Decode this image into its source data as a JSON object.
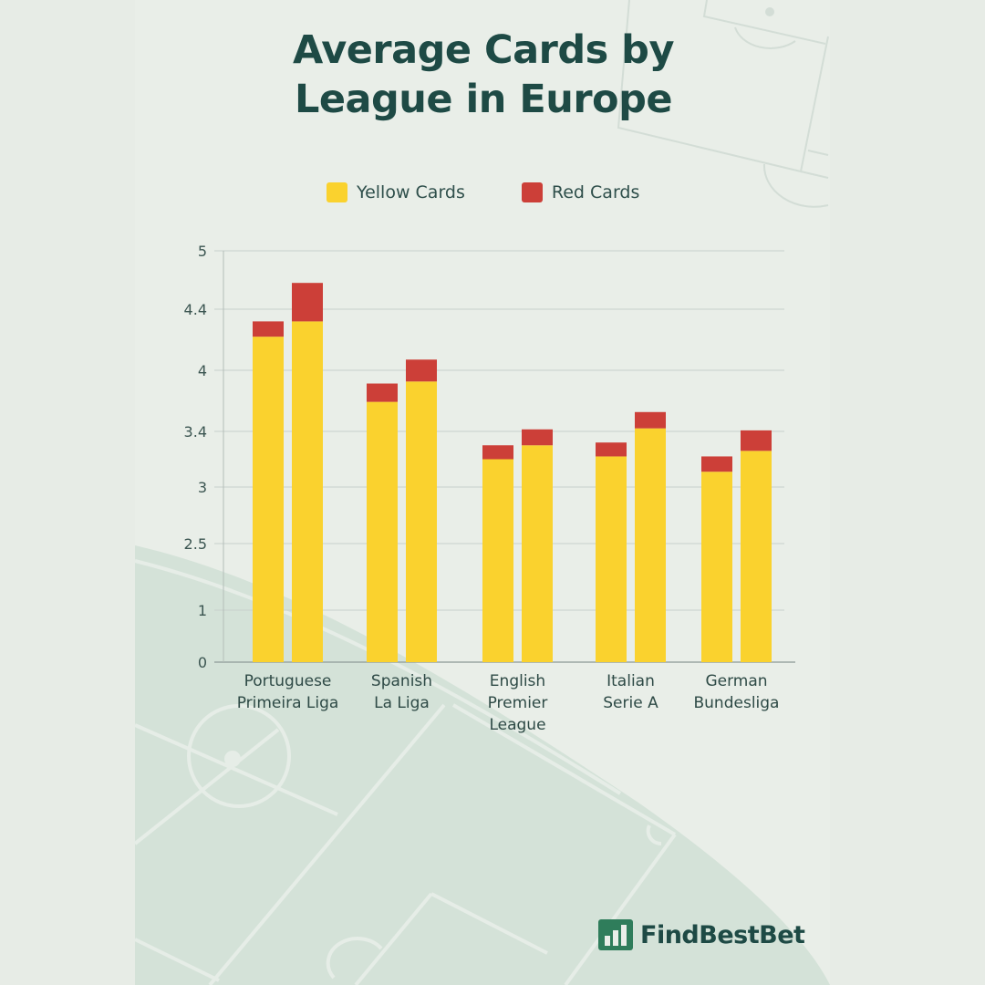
{
  "title_lines": [
    "Average Cards by",
    "League in Europe"
  ],
  "legend": [
    {
      "label": "Yellow Cards",
      "color": "#fad22e"
    },
    {
      "label": "Red Cards",
      "color": "#cc3f38"
    }
  ],
  "brand": {
    "name": "FindBestBet",
    "icon": "bar-chart-logo-icon",
    "color": "#2f7d5b"
  },
  "chart_data": {
    "type": "bar",
    "stacked": true,
    "title": "Average Cards by League in Europe",
    "xlabel": "",
    "ylabel": "",
    "ylim": [
      0,
      5
    ],
    "y_ticks": [
      "0",
      "1",
      "2.5",
      "3",
      "3.4",
      "4",
      "4.4",
      "5"
    ],
    "y_tick_values": [
      0,
      1,
      2.5,
      3,
      3.4,
      4,
      4.4,
      5
    ],
    "axis_note": "Tick labels are unevenly spaced (non-linear axis); values estimated by interpolating between labeled gridlines",
    "grid": true,
    "legend_position": "top-center",
    "categories": [
      [
        "Portuguese",
        "Primeira Liga"
      ],
      [
        "Spanish",
        "La Liga"
      ],
      [
        "English",
        "Premier",
        "League"
      ],
      [
        "Italian",
        "Serie A"
      ],
      [
        "German",
        "Bundesliga"
      ]
    ],
    "bars_per_category": 2,
    "series": [
      {
        "name": "Yellow Cards",
        "color": "#fad22e",
        "values": [
          [
            4.22,
            4.32
          ],
          [
            3.69,
            3.89
          ],
          [
            3.2,
            3.3
          ],
          [
            3.22,
            3.43
          ],
          [
            3.11,
            3.26
          ]
        ]
      },
      {
        "name": "Red Cards",
        "color": "#cc3f38",
        "totals": [
          [
            4.32,
            4.67
          ],
          [
            3.87,
            4.07
          ],
          [
            3.3,
            3.42
          ],
          [
            3.32,
            3.59
          ],
          [
            3.22,
            3.41
          ]
        ]
      }
    ]
  }
}
